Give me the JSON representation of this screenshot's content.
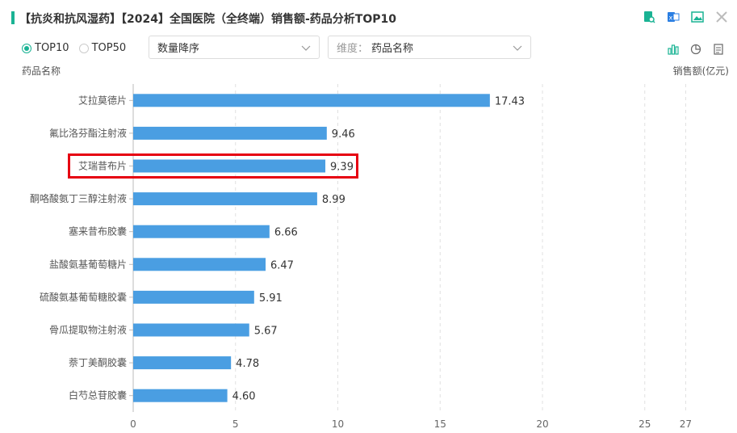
{
  "header": {
    "title": "【抗炎和抗风湿药】【2024】全国医院（全终端）销售额-药品分析TOP10",
    "icons": [
      "report-search-icon",
      "excel-export-icon",
      "image-export-icon",
      "close-icon"
    ]
  },
  "controls": {
    "radio_top10": "TOP10",
    "radio_top50": "TOP50",
    "selected_radio": "TOP10",
    "sort_select": "数量降序",
    "dimension_prefix": "维度：",
    "dimension_value": "药品名称",
    "chart_type_icons": [
      "bar-chart-icon",
      "pie-chart-icon",
      "table-view-icon"
    ]
  },
  "colors": {
    "bar": "#4a9ee2",
    "accent": "#1ab394",
    "highlight": "#e60012"
  },
  "chart_data": {
    "type": "bar",
    "orientation": "horizontal",
    "ylabel": "药品名称",
    "xlabel": "销售额(亿元)",
    "categories": [
      "艾拉莫德片",
      "氟比洛芬酯注射液",
      "艾瑞昔布片",
      "酮咯酸氨丁三醇注射液",
      "塞来昔布胶囊",
      "盐酸氨基葡萄糖片",
      "硫酸氨基葡萄糖胶囊",
      "骨瓜提取物注射液",
      "萘丁美酮胶囊",
      "白芍总苷胶囊"
    ],
    "values": [
      17.43,
      9.46,
      9.39,
      8.99,
      6.66,
      6.47,
      5.91,
      5.67,
      4.78,
      4.6
    ],
    "value_labels": [
      "17.43",
      "9.46",
      "9.39",
      "8.99",
      "6.66",
      "6.47",
      "5.91",
      "5.67",
      "4.78",
      "4.60"
    ],
    "xticks": [
      "0",
      "5",
      "10",
      "15",
      "20",
      "25",
      "27"
    ],
    "xtick_values": [
      0,
      5,
      10,
      15,
      20,
      25,
      27
    ],
    "xlim": [
      0,
      27
    ],
    "grid": "vertical-dashed",
    "highlighted_category": "艾瑞昔布片"
  }
}
